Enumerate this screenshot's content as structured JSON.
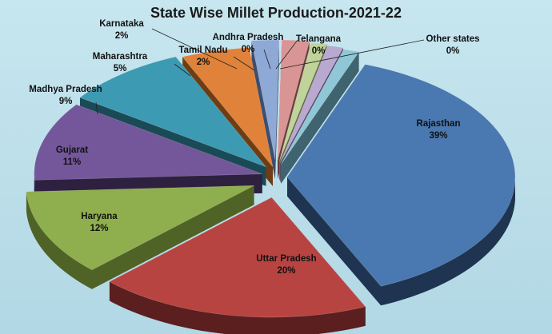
{
  "chart_data": {
    "type": "pie",
    "style": "3d-exploded",
    "title": "State Wise Millet Production-2021-22",
    "legend": "none",
    "slices": [
      {
        "name": "Rajasthan",
        "value": 39,
        "label": "39%",
        "color": "#4a78b0",
        "side_color": "#1f3450"
      },
      {
        "name": "Uttar Pradesh",
        "value": 20,
        "label": "20%",
        "color": "#b84442",
        "side_color": "#5a1f1e"
      },
      {
        "name": "Haryana",
        "value": 12,
        "label": "12%",
        "color": "#8fae4d",
        "side_color": "#4f6327"
      },
      {
        "name": "Gujarat",
        "value": 11,
        "label": "11%",
        "color": "#74579a",
        "side_color": "#2e2140"
      },
      {
        "name": "Madhya Pradesh",
        "value": 9,
        "label": "9%",
        "color": "#3d9ab3",
        "side_color": "#1b4a57"
      },
      {
        "name": "Maharashtra",
        "value": 5,
        "label": "5%",
        "color": "#e0823a",
        "side_color": "#6e3d14"
      },
      {
        "name": "Karnataka",
        "value": 2,
        "label": "2%",
        "color": "#8ea9d6",
        "side_color": "#3e4e6c"
      },
      {
        "name": "Tamil Nadu",
        "value": 2,
        "label": "2%",
        "color": "#d99494",
        "side_color": "#6a3e3e"
      },
      {
        "name": "Andhra Pradesh",
        "value": 0,
        "label": "0%",
        "color": "#bfd39a",
        "side_color": "#5f6b45"
      },
      {
        "name": "Telangana",
        "value": 0,
        "label": "0%",
        "color": "#b9a8cf",
        "side_color": "#54476a"
      },
      {
        "name": "Other states",
        "value": 0,
        "label": "0%",
        "color": "#8fc7d6",
        "side_color": "#3f6470"
      }
    ]
  }
}
